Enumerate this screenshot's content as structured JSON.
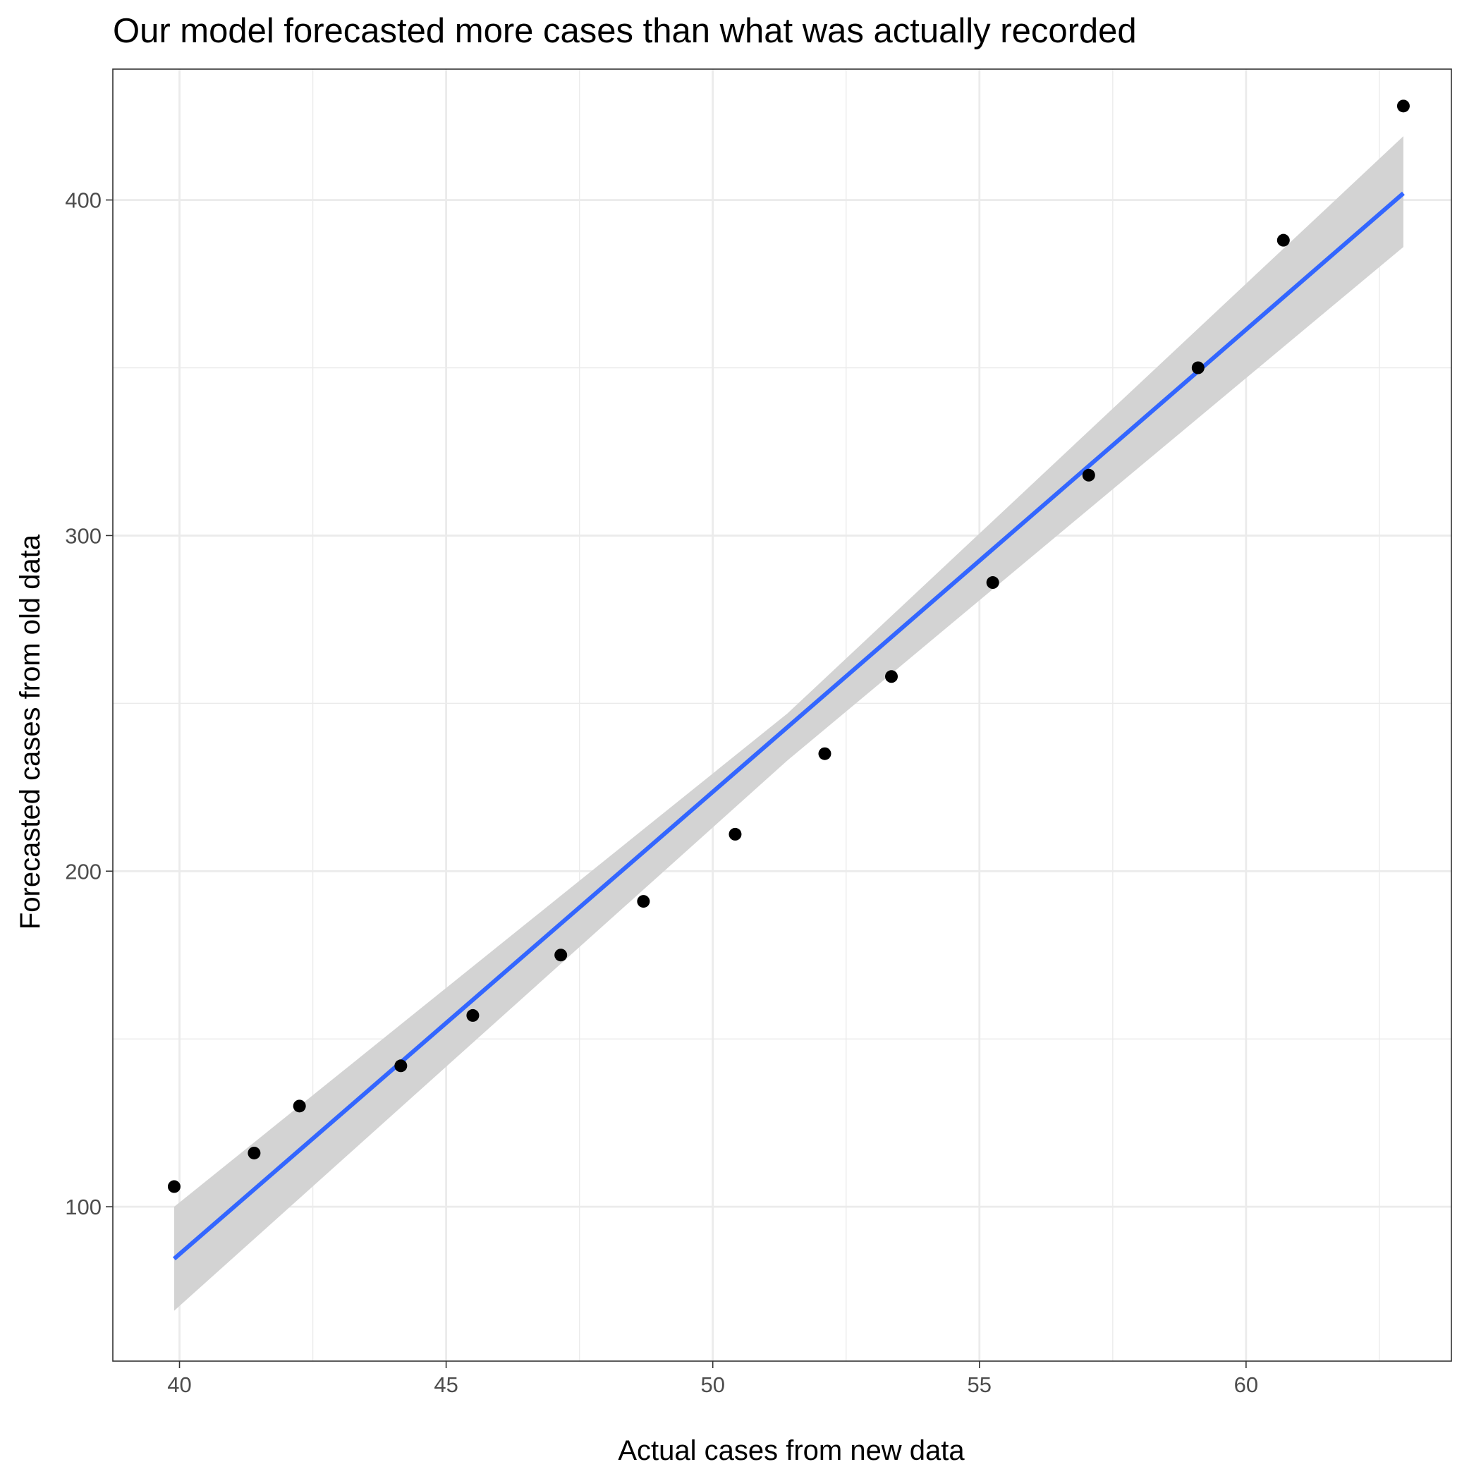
{
  "chart_data": {
    "type": "scatter",
    "title": "Our model forecasted more cases than what was actually recorded",
    "xlabel": "Actual cases from new data",
    "ylabel": "Forecasted cases from old data",
    "xlim": [
      38.75,
      63.85
    ],
    "ylim": [
      54,
      439
    ],
    "x_ticks": [
      40,
      45,
      50,
      55,
      60
    ],
    "x_tick_labels": [
      "40",
      "45",
      "50",
      "55",
      "60"
    ],
    "y_ticks": [
      100,
      200,
      300,
      400
    ],
    "y_tick_labels": [
      "100",
      "200",
      "300",
      "400"
    ],
    "x_minor_ticks": [
      42.5,
      47.5,
      52.5,
      57.5,
      62.5
    ],
    "y_minor_ticks": [
      150,
      250,
      350
    ],
    "grid": true,
    "points": {
      "x": [
        39.9,
        41.4,
        42.25,
        44.15,
        45.5,
        47.15,
        48.7,
        50.42,
        52.1,
        53.35,
        55.25,
        57.05,
        59.1,
        60.7,
        62.95
      ],
      "y": [
        106,
        116,
        130,
        142,
        157,
        175,
        191,
        211,
        235,
        258,
        286,
        318,
        350,
        388,
        428
      ]
    },
    "trend_line": {
      "x": [
        39.9,
        62.95
      ],
      "y": [
        84.5,
        402
      ]
    },
    "confidence_band": {
      "x": [
        39.9,
        51.4,
        62.95
      ],
      "lower": [
        69,
        233,
        386
      ],
      "upper": [
        100,
        247,
        419
      ]
    },
    "colors": {
      "points": "#000000",
      "trend_line": "#3366ff",
      "band": "#d3d3d3",
      "grid": "#ebebeb",
      "panel_border": "#333333"
    }
  }
}
